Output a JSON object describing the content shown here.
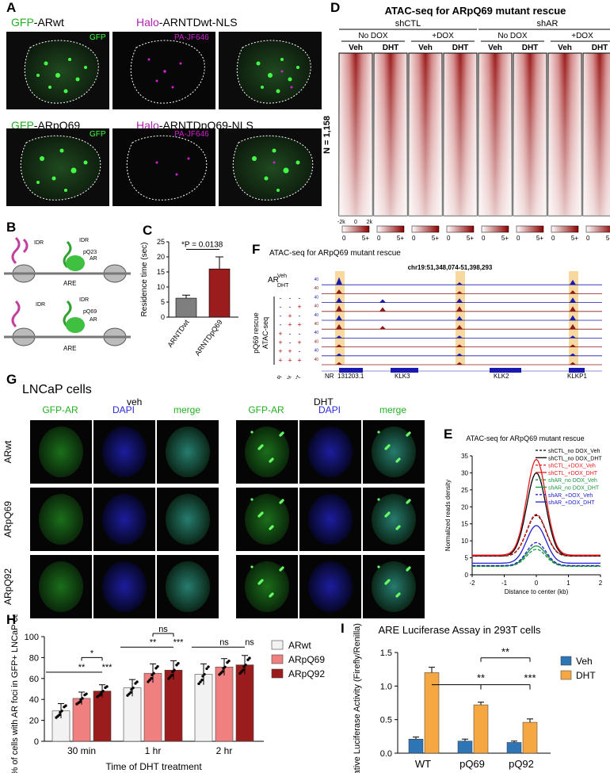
{
  "panels": {
    "a": "A",
    "b": "B",
    "c": "C",
    "d": "D",
    "e": "E",
    "f": "F",
    "g": "G",
    "h": "H",
    "i": "I"
  },
  "panelA": {
    "row1": {
      "gfp": "GFP",
      "gfp_rest": "-ARwt",
      "halo": "Halo",
      "halo_rest": "-ARNTDwt-NLS",
      "img1_label": "GFP",
      "img2_label": "PA-JF646"
    },
    "row2": {
      "gfp": "GFP",
      "gfp_rest": "-ARpQ69",
      "halo": "Halo",
      "halo_rest": "-ARNTDpQ69-NLS",
      "img1_label": "GFP",
      "img2_label": "PA-JF646"
    }
  },
  "panelB": {
    "top_labels": [
      "IDR",
      "IDR",
      "pQ23",
      "AR",
      "ARE"
    ],
    "bottom_labels": [
      "IDR",
      "IDR",
      "pQ69",
      "AR",
      "ARE"
    ]
  },
  "panelC": {
    "ylabel": "Residence time (sec)",
    "pvalue": "*P = 0.0138",
    "chart_data": {
      "type": "bar",
      "categories": [
        "ARNTDwt",
        "ARNTDpQ69"
      ],
      "values": [
        6.3,
        16.0
      ],
      "errors": [
        1.0,
        4.0
      ],
      "colors": [
        "#7f7f7f",
        "#9b1c1c"
      ],
      "ylim": [
        0,
        25
      ],
      "yticks": [
        0,
        5,
        10,
        15,
        20,
        25
      ]
    }
  },
  "panelD": {
    "title": "ATAC-seq for ARpQ69 mutant rescue",
    "groups": [
      "shCTL",
      "shAR"
    ],
    "subgroups": [
      "No DOX",
      "+DOX",
      "No DOX",
      "+DOX"
    ],
    "cols": [
      "Veh",
      "DHT",
      "Veh",
      "DHT",
      "Veh",
      "DHT",
      "Veh",
      "DHT"
    ],
    "n_label": "N = 1,158",
    "axis": [
      "-2k",
      "0",
      "2k"
    ],
    "scale": [
      "0",
      "5+"
    ]
  },
  "panelE": {
    "title": "ATAC-seq for ARpQ69 mutant rescue",
    "ylabel": "Normalized reads density",
    "xlabel": "Distance to center (kb)",
    "chart_data": {
      "type": "line",
      "xticks": [
        -2,
        -1,
        0,
        1,
        2
      ],
      "yticks": [
        0,
        5,
        10,
        15,
        20,
        25,
        30,
        35
      ],
      "ylim": [
        0,
        35
      ],
      "series": [
        {
          "name": "shCTL_no DOX_Veh",
          "color": "#000000",
          "dash": true,
          "peak": 17.5,
          "base": 5.5
        },
        {
          "name": "shCTL_no DOX_DHT",
          "color": "#000000",
          "dash": false,
          "peak": 30.0,
          "base": 5.5
        },
        {
          "name": "shCTL_+DOX_Veh",
          "color": "#e41a1c",
          "dash": true,
          "peak": 17.8,
          "base": 5.6
        },
        {
          "name": "shCTL_+DOX_DHT",
          "color": "#e41a1c",
          "dash": false,
          "peak": 34.0,
          "base": 5.8
        },
        {
          "name": "shAR_no DOX_Veh",
          "color": "#1a9641",
          "dash": true,
          "peak": 7.5,
          "base": 2.5
        },
        {
          "name": "shAR_no DOX_DHT",
          "color": "#1a9641",
          "dash": false,
          "peak": 8.5,
          "base": 2.6
        },
        {
          "name": "shAR_+DOX_Veh",
          "color": "#2020d0",
          "dash": true,
          "peak": 9.5,
          "base": 2.7
        },
        {
          "name": "shAR_+DOX_DHT",
          "color": "#2020d0",
          "dash": false,
          "peak": 14.5,
          "base": 3.4
        }
      ]
    }
  },
  "panelF": {
    "title": "ATAC-seq for ARpQ69 mutant rescue",
    "coords": "chr19:51,348,074-51,398,293",
    "ar": "AR",
    "veh": "Veh",
    "dht": "DHT",
    "rescue": "pQ69 rescue",
    "atac": "ATAC-seq",
    "cond_labels": [
      "shAR",
      "Dox",
      "DHT"
    ],
    "genes": [
      "NR_131203.1",
      "KLK3",
      "KLK2",
      "KLKP1"
    ],
    "matrix": [
      [
        "-",
        "-",
        "-"
      ],
      [
        "-",
        "-",
        "+"
      ],
      [
        "-",
        "+",
        "-"
      ],
      [
        "-",
        "+",
        "+"
      ],
      [
        "+",
        "-",
        "-"
      ],
      [
        "+",
        "-",
        "+"
      ],
      [
        "+",
        "+",
        "-"
      ],
      [
        "+",
        "+",
        "+"
      ]
    ]
  },
  "panelG": {
    "title": "LNCaP cells",
    "veh": "veh",
    "dht": "DHT",
    "cols": [
      "GFP-AR",
      "DAPI",
      "merge",
      "GFP-AR",
      "DAPI",
      "merge"
    ],
    "rows": [
      "ARwt",
      "ARpQ69",
      "ARpQ92"
    ]
  },
  "panelH": {
    "ylabel": "% of cells with AR foci in GFP+ LNCaP cells",
    "xlabel": "Time of DHT treatment",
    "sig": [
      "*",
      "**",
      "***",
      "ns",
      "**",
      "***",
      "ns",
      "ns"
    ],
    "chart_data": {
      "type": "bar",
      "categories": [
        "30 min",
        "1 hr",
        "2 hr"
      ],
      "ylim": [
        0,
        100
      ],
      "yticks": [
        0,
        20,
        40,
        60,
        80,
        100
      ],
      "series": [
        {
          "name": "ARwt",
          "color": "#f2f2f2",
          "values": [
            29,
            51,
            64
          ],
          "errors": [
            7,
            8,
            10
          ]
        },
        {
          "name": "ARpQ69",
          "color": "#f08080",
          "values": [
            41,
            65,
            71
          ],
          "errors": [
            6,
            9,
            8
          ]
        },
        {
          "name": "ARpQ92",
          "color": "#9b1c1c",
          "values": [
            48,
            68,
            73
          ],
          "errors": [
            6,
            9,
            9
          ]
        }
      ]
    }
  },
  "panelI": {
    "title": "ARE Luciferase Assay in 293T cells",
    "ylabel": "Relative Luciferase Activity (Firefly/Renilla)",
    "sig": [
      "**",
      "**",
      "***"
    ],
    "chart_data": {
      "type": "bar",
      "categories": [
        "WT",
        "pQ69",
        "pQ92"
      ],
      "ylim": [
        0,
        1.5
      ],
      "yticks": [
        0.0,
        0.5,
        1.0,
        1.5
      ],
      "series": [
        {
          "name": "Veh",
          "color": "#2e75b6",
          "values": [
            0.21,
            0.18,
            0.16
          ],
          "errors": [
            0.03,
            0.03,
            0.02
          ]
        },
        {
          "name": "DHT",
          "color": "#f5a742",
          "values": [
            1.2,
            0.72,
            0.46
          ],
          "errors": [
            0.08,
            0.04,
            0.05
          ]
        }
      ]
    }
  }
}
